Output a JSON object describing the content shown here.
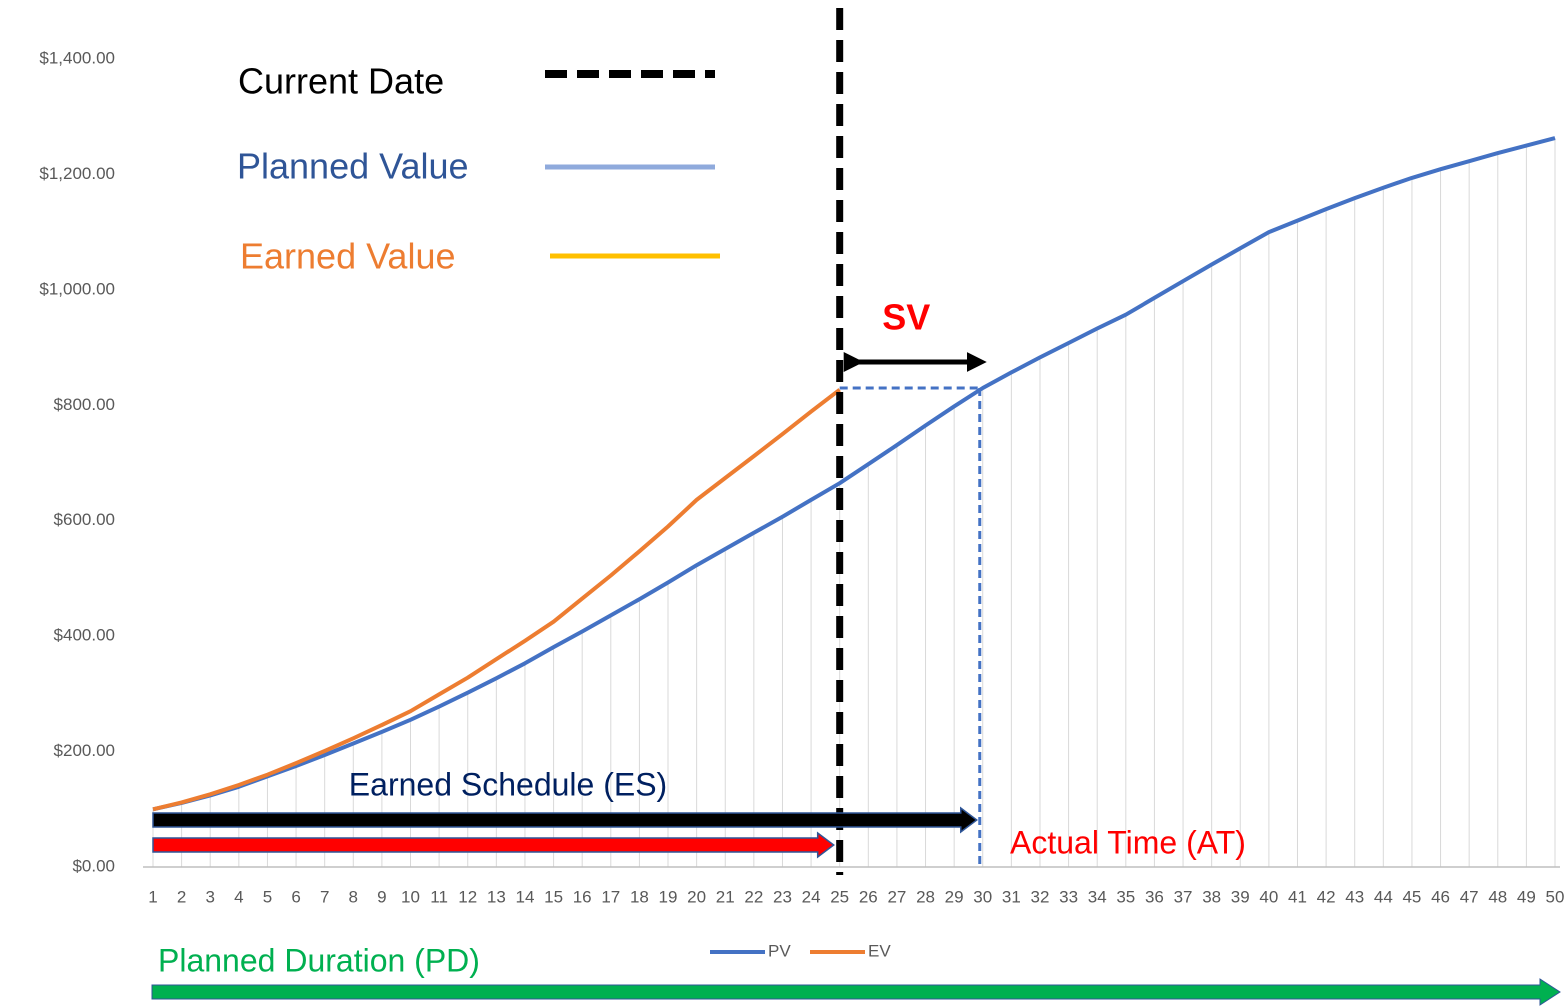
{
  "chart_data": {
    "type": "line",
    "x": [
      1,
      2,
      3,
      4,
      5,
      6,
      7,
      8,
      9,
      10,
      11,
      12,
      13,
      14,
      15,
      16,
      17,
      18,
      19,
      20,
      21,
      22,
      23,
      24,
      25,
      26,
      27,
      28,
      29,
      30,
      31,
      32,
      33,
      34,
      35,
      36,
      37,
      38,
      39,
      40,
      41,
      42,
      43,
      44,
      45,
      46,
      47,
      48,
      49,
      50
    ],
    "xlim": [
      1,
      50
    ],
    "series": [
      {
        "name": "PV",
        "color": "#4472c4",
        "values": [
          100,
          111,
          124,
          139,
          157,
          175,
          194,
          214,
          234,
          255,
          278,
          302,
          327,
          353,
          381,
          408,
          436,
          464,
          493,
          523,
          551,
          579,
          607,
          636,
          665,
          698,
          731,
          765,
          798,
          830,
          857,
          883,
          908,
          933,
          957,
          986,
          1015,
          1044,
          1072,
          1100,
          1120,
          1140,
          1159,
          1177,
          1194,
          1209,
          1223,
          1237,
          1250,
          1263
        ]
      },
      {
        "name": "EV",
        "color": "#ed7d31",
        "values": [
          100,
          112,
          126,
          142,
          160,
          180,
          201,
          223,
          246,
          270,
          299,
          328,
          360,
          392,
          425,
          465,
          505,
          547,
          590,
          636,
          674,
          712,
          750,
          789,
          827,
          null,
          null,
          null,
          null,
          null,
          null,
          null,
          null,
          null,
          null,
          null,
          null,
          null,
          null,
          null,
          null,
          null,
          null,
          null,
          null,
          null,
          null,
          null,
          null,
          null
        ]
      }
    ],
    "ylim": [
      0,
      1400
    ],
    "yticks": [
      {
        "value": 0,
        "label": "$0.00"
      },
      {
        "value": 200,
        "label": "$200.00"
      },
      {
        "value": 400,
        "label": "$400.00"
      },
      {
        "value": 600,
        "label": "$600.00"
      },
      {
        "value": 800,
        "label": "$800.00"
      },
      {
        "value": 1000,
        "label": "$1,000.00"
      },
      {
        "value": 1200,
        "label": "$1,200.00"
      },
      {
        "value": 1400,
        "label": "$1,400.00"
      }
    ],
    "current_date": 25,
    "earned_schedule": 30,
    "annotations": {
      "current_date": "Current Date",
      "planned_value": "Planned Value",
      "earned_value": "Earned Value",
      "sv": "SV",
      "es": "Earned Schedule (ES)",
      "at": "Actual Time (AT)",
      "pd": "Planned Duration (PD)"
    }
  }
}
